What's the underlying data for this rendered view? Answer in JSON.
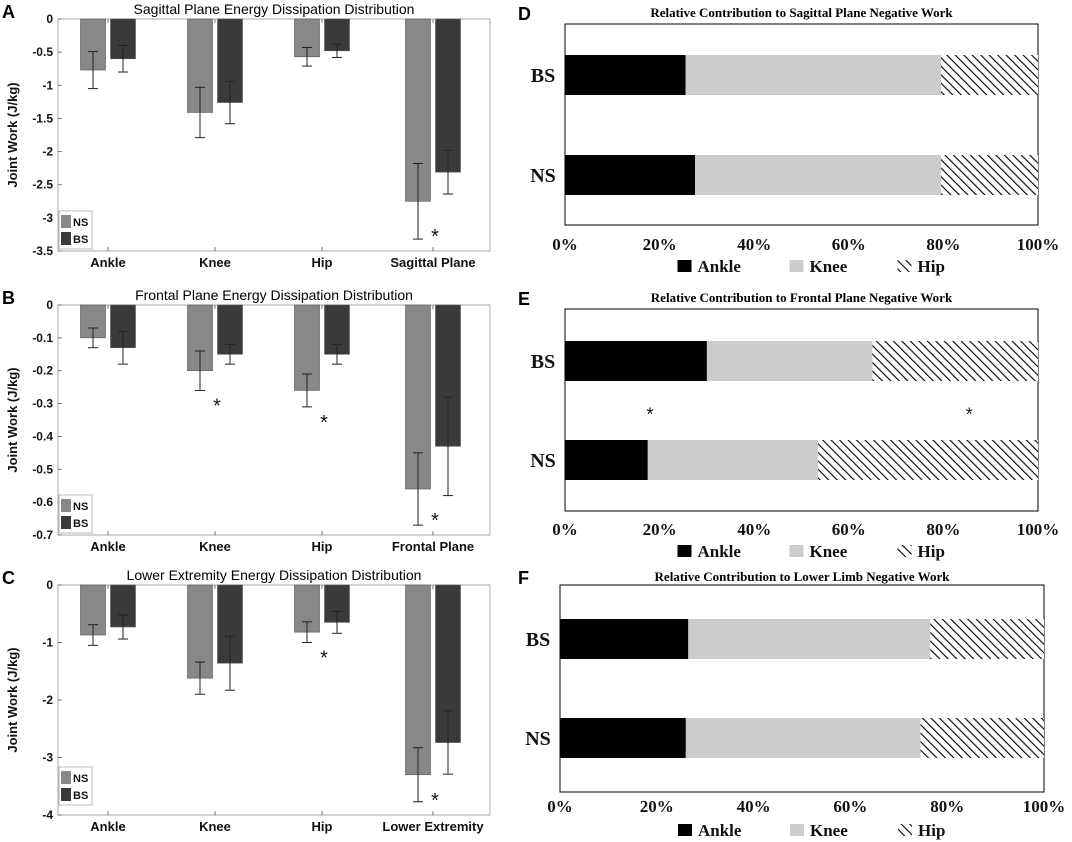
{
  "colors": {
    "ns": "#888888",
    "bs": "#3a3a3a",
    "ankle": "#000000",
    "knee": "#cccccc",
    "hip_stroke": "#000000",
    "axis": "#7a7a7a"
  },
  "chart_data": [
    {
      "panel": "A",
      "type": "bar",
      "title": "Sagittal Plane Energy Dissipation Distribution",
      "ylabel": "Joint Work (J/kg)",
      "xlabel": "",
      "categories": [
        "Ankle",
        "Knee",
        "Hip",
        "Sagittal Plane"
      ],
      "ylim": [
        -3.5,
        0
      ],
      "yticks": [
        0,
        -0.5,
        -1,
        -1.5,
        -2,
        -2.5,
        -3,
        -3.5
      ],
      "ytick_labels": [
        "0",
        "-0.5",
        "-1",
        "-1.5",
        "-2",
        "-2.5",
        "-3",
        "-3.5"
      ],
      "series": [
        {
          "name": "NS",
          "values": [
            -0.77,
            -1.41,
            -0.57,
            -2.75
          ],
          "errors": [
            0.28,
            0.38,
            0.14,
            0.57
          ]
        },
        {
          "name": "BS",
          "values": [
            -0.6,
            -1.26,
            -0.48,
            -2.31
          ],
          "errors": [
            0.2,
            0.32,
            0.1,
            0.33
          ]
        }
      ],
      "significance": [
        {
          "category": "Sagittal Plane",
          "label": "*"
        }
      ],
      "legend_location": "lower-left"
    },
    {
      "panel": "B",
      "type": "bar",
      "title": "Frontal Plane Energy Dissipation Distribution",
      "ylabel": "Joint Work (J/kg)",
      "xlabel": "",
      "categories": [
        "Ankle",
        "Knee",
        "Hip",
        "Frontal Plane"
      ],
      "ylim": [
        -0.7,
        0
      ],
      "yticks": [
        0,
        -0.1,
        -0.2,
        -0.3,
        -0.4,
        -0.5,
        -0.6,
        -0.7
      ],
      "ytick_labels": [
        "0",
        "-0.1",
        "-0.2",
        "-0.3",
        "-0.4",
        "-0.5",
        "-0.6",
        "-0.7"
      ],
      "series": [
        {
          "name": "NS",
          "values": [
            -0.1,
            -0.2,
            -0.26,
            -0.56
          ],
          "errors": [
            0.03,
            0.06,
            0.05,
            0.11
          ]
        },
        {
          "name": "BS",
          "values": [
            -0.13,
            -0.15,
            -0.15,
            -0.43
          ],
          "errors": [
            0.05,
            0.03,
            0.03,
            0.15
          ]
        }
      ],
      "significance": [
        {
          "category": "Knee",
          "label": "*"
        },
        {
          "category": "Hip",
          "label": "*"
        },
        {
          "category": "Frontal Plane",
          "label": "*"
        }
      ],
      "legend_location": "lower-left"
    },
    {
      "panel": "C",
      "type": "bar",
      "title": "Lower Extremity Energy Dissipation Distribution",
      "ylabel": "Joint Work (J/kg)",
      "xlabel": "",
      "categories": [
        "Ankle",
        "Knee",
        "Hip",
        "Lower Extremity"
      ],
      "ylim": [
        -4,
        0
      ],
      "yticks": [
        0,
        -1,
        -2,
        -3,
        -4
      ],
      "ytick_labels": [
        "0",
        "-1",
        "-2",
        "-3",
        "-4"
      ],
      "series": [
        {
          "name": "NS",
          "values": [
            -0.87,
            -1.62,
            -0.82,
            -3.3
          ],
          "errors": [
            0.18,
            0.28,
            0.18,
            0.47
          ]
        },
        {
          "name": "BS",
          "values": [
            -0.73,
            -1.36,
            -0.65,
            -2.74
          ],
          "errors": [
            0.21,
            0.47,
            0.19,
            0.55
          ]
        }
      ],
      "significance": [
        {
          "category": "Hip",
          "label": "*"
        },
        {
          "category": "Lower Extremity",
          "label": "*"
        }
      ],
      "legend_location": "lower-left"
    },
    {
      "panel": "D",
      "type": "stacked-bar-horizontal",
      "title": "Relative Contribution to Sagittal Plane Negative Work",
      "categories": [
        "BS",
        "NS"
      ],
      "xlim": [
        0,
        100
      ],
      "xtick_labels": [
        "0%",
        "20%",
        "40%",
        "60%",
        "80%",
        "100%"
      ],
      "series": [
        {
          "name": "Ankle",
          "values": [
            25.5,
            27.5
          ]
        },
        {
          "name": "Knee",
          "values": [
            54.0,
            52.0
          ]
        },
        {
          "name": "Hip",
          "values": [
            20.5,
            20.5
          ]
        }
      ],
      "significance": [],
      "legend_location": "bottom"
    },
    {
      "panel": "E",
      "type": "stacked-bar-horizontal",
      "title": "Relative Contribution to Frontal Plane Negative Work",
      "categories": [
        "BS",
        "NS"
      ],
      "xlim": [
        0,
        100
      ],
      "xtick_labels": [
        "0%",
        "20%",
        "40%",
        "60%",
        "80%",
        "100%"
      ],
      "series": [
        {
          "name": "Ankle",
          "values": [
            30.0,
            17.5
          ]
        },
        {
          "name": "Knee",
          "values": [
            35.0,
            36.0
          ]
        },
        {
          "name": "Hip",
          "values": [
            35.0,
            46.5
          ]
        }
      ],
      "significance": [
        {
          "series": "Ankle",
          "label": "*"
        },
        {
          "series": "Hip",
          "label": "*"
        }
      ],
      "legend_location": "bottom"
    },
    {
      "panel": "F",
      "type": "stacked-bar-horizontal",
      "title": "Relative Contribution to Lower Limb Negative Work",
      "categories": [
        "BS",
        "NS"
      ],
      "xlim": [
        0,
        100
      ],
      "xtick_labels": [
        "0%",
        "20%",
        "40%",
        "60%",
        "80%",
        "100%"
      ],
      "series": [
        {
          "name": "Ankle",
          "values": [
            26.5,
            26.0
          ]
        },
        {
          "name": "Knee",
          "values": [
            50.0,
            48.5
          ]
        },
        {
          "name": "Hip",
          "values": [
            23.5,
            25.5
          ]
        }
      ],
      "significance": [],
      "legend_location": "bottom"
    }
  ]
}
